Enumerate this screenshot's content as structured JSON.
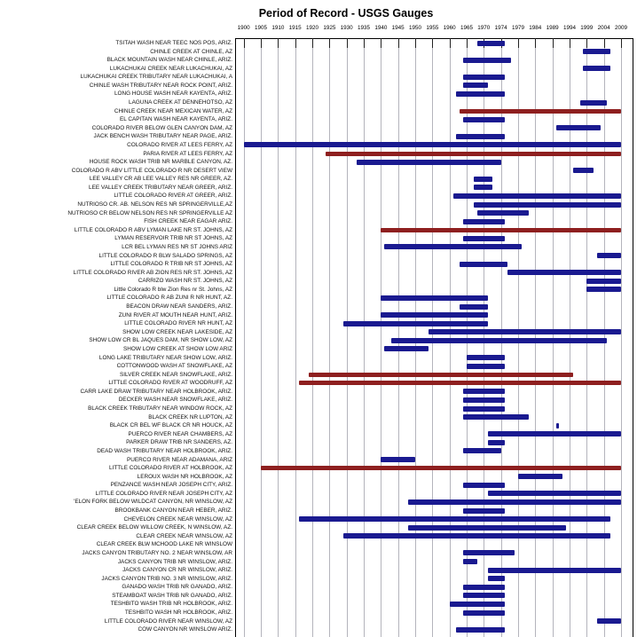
{
  "title": "Period of Record - USGS Gauges",
  "colors": {
    "bar_blue": "#1a1a90",
    "bar_red": "#8e1f1f",
    "gridline": "#b4b4bc",
    "axis_border": "#000000",
    "background": "#ffffff"
  },
  "chart_data": {
    "type": "bar",
    "subtype": "gantt-period-of-record",
    "title": "Period of Record - USGS Gauges",
    "x_axis_tick_labels": [
      "1900",
      "1905",
      "1910",
      "1915",
      "1920",
      "1925",
      "1930",
      "1935",
      "1940",
      "1945",
      "1950",
      "1955",
      "1960",
      "1965",
      "1970",
      "1974",
      "1979",
      "1984",
      "1989",
      "1994",
      "1999",
      "2004",
      "2009"
    ],
    "x_range": [
      1900,
      2009
    ],
    "grid": true,
    "legend": false,
    "rows": [
      {
        "label": "TSITAH WASH NEAR TEEC NOS POS, ARIZ.",
        "start": 1968,
        "end": 1975,
        "color": "blue"
      },
      {
        "label": "CHINLE CREEK AT CHINLE, AZ",
        "start": 1998,
        "end": 2006,
        "color": "blue"
      },
      {
        "label": "BLACK MOUNTAIN WASH NEAR CHINLE, ARIZ.",
        "start": 1964,
        "end": 1977,
        "color": "blue"
      },
      {
        "label": "LUKACHUKAI CREEK NEAR LUKACHUKAI, AZ",
        "start": 1998,
        "end": 2006,
        "color": "blue"
      },
      {
        "label": "LUKACHUKAI CREEK TRIBUTARY NEAR LUKACHUKAI, A",
        "start": 1964,
        "end": 1975,
        "color": "blue"
      },
      {
        "label": "CHINLE WASH TRIBUTARY NEAR ROCK POINT, ARIZ.",
        "start": 1964,
        "end": 1971,
        "color": "blue"
      },
      {
        "label": "LONG HOUSE WASH NEAR KAYENTA, ARIZ.",
        "start": 1962,
        "end": 1975,
        "color": "blue"
      },
      {
        "label": "LAGUNA CREEK AT DENNEHOTSO, AZ",
        "start": 1997,
        "end": 2005,
        "color": "blue"
      },
      {
        "label": "CHINLE CREEK NEAR MEXICAN WATER, AZ",
        "start": 1963,
        "end": 2009,
        "color": "red"
      },
      {
        "label": "EL CAPITAN WASH NEAR KAYENTA, ARIZ.",
        "start": 1964,
        "end": 1975,
        "color": "blue"
      },
      {
        "label": "COLORADO RIVER BELOW GLEN CANYON DAM, AZ",
        "start": 1990,
        "end": 2003,
        "color": "blue"
      },
      {
        "label": "JACK BENCH WASH TRIBUTARY NEAR PAGE, ARIZ.",
        "start": 1962,
        "end": 1975,
        "color": "blue"
      },
      {
        "label": "COLORADO RIVER AT LEES FERRY, AZ",
        "start": 1900,
        "end": 2009,
        "color": "blue"
      },
      {
        "label": "PARIA RIVER AT LEES FERRY, AZ",
        "start": 1924,
        "end": 2009,
        "color": "red"
      },
      {
        "label": "HOUSE ROCK WASH TRIB NR MARBLE CANYON, AZ.",
        "start": 1933,
        "end": 1974,
        "color": "blue"
      },
      {
        "label": "COLORADO R ABV LITTLE COLORADO R NR DESERT VIEW",
        "start": 1995,
        "end": 2001,
        "color": "blue"
      },
      {
        "label": "LEE VALLEY CR AB LEE VALLEY RES NR GREER, AZ.",
        "start": 1967,
        "end": 1972,
        "color": "blue"
      },
      {
        "label": "LEE VALLEY CREEK TRIBUTARY NEAR GREER, ARIZ.",
        "start": 1967,
        "end": 1972,
        "color": "blue"
      },
      {
        "label": "LITTLE COLORADO RIVER AT GREER, ARIZ.",
        "start": 1961,
        "end": 2009,
        "color": "blue"
      },
      {
        "label": "NUTRIOSO CR. AB. NELSON RES NR SPRINGERVILLE,AZ",
        "start": 1967,
        "end": 2009,
        "color": "blue"
      },
      {
        "label": "NUTRIOSO CR BELOW NELSON RES NR SPRINGERVILLE AZ",
        "start": 1968,
        "end": 1982,
        "color": "blue"
      },
      {
        "label": "FISH CREEK NEAR EAGAR ARIZ.",
        "start": 1964,
        "end": 1975,
        "color": "blue"
      },
      {
        "label": "LITTLE COLORADO R ABV LYMAN LAKE NR ST. JOHNS, AZ",
        "start": 1940,
        "end": 2009,
        "color": "red"
      },
      {
        "label": "LYMAN RESERVOIR TRIB NR ST JOHNS, AZ",
        "start": 1964,
        "end": 1975,
        "color": "blue"
      },
      {
        "label": "LCR BEL LYMAN RES NR ST JOHNS ARIZ",
        "start": 1941,
        "end": 1980,
        "color": "blue"
      },
      {
        "label": "LITTLE COLORADO R BLW SALADO SPRINGS, AZ",
        "start": 2002,
        "end": 2009,
        "color": "blue"
      },
      {
        "label": "LITTLE COLORADO R TRIB NR ST JOHNS, AZ",
        "start": 1963,
        "end": 1976,
        "color": "blue"
      },
      {
        "label": "LITTLE COLORADO RIVER AB ZION RES NR ST. JOHNS, AZ",
        "start": 1976,
        "end": 2009,
        "color": "blue"
      },
      {
        "label": "CARRIZO WASH NR ST. JOHNS, AZ",
        "start": 1999,
        "end": 2009,
        "color": "blue"
      },
      {
        "label": "Little Colorado R blw Zion Res nr St. Johns, AZ",
        "start": 1999,
        "end": 2009,
        "color": "blue"
      },
      {
        "label": "LITTLE COLORADO R AB ZUNI R NR HUNT, AZ.",
        "start": 1940,
        "end": 1971,
        "color": "blue"
      },
      {
        "label": "BEACON DRAW NEAR SANDERS, ARIZ.",
        "start": 1963,
        "end": 1971,
        "color": "blue"
      },
      {
        "label": "ZUNI RIVER AT MOUTH NEAR HUNT, ARIZ.",
        "start": 1940,
        "end": 1971,
        "color": "blue"
      },
      {
        "label": "LITTLE COLORADO RIVER NR HUNT, AZ",
        "start": 1929,
        "end": 1971,
        "color": "blue"
      },
      {
        "label": "SHOW LOW CREEK NEAR LAKESIDE, AZ",
        "start": 1954,
        "end": 2009,
        "color": "blue"
      },
      {
        "label": "SHOW LOW CR BL JAQUES DAM, NR SHOW LOW, AZ",
        "start": 1943,
        "end": 2005,
        "color": "blue"
      },
      {
        "label": "SHOW LOW CREEK AT SHOW LOW ARIZ",
        "start": 1941,
        "end": 1954,
        "color": "blue"
      },
      {
        "label": "LONG LAKE TRIBUTARY NEAR SHOW LOW, ARIZ.",
        "start": 1965,
        "end": 1975,
        "color": "blue"
      },
      {
        "label": "COTTONWOOD WASH AT SNOWFLAKE, AZ",
        "start": 1965,
        "end": 1975,
        "color": "blue"
      },
      {
        "label": "SILVER CREEK NEAR SNOWFLAKE, ARIZ.",
        "start": 1919,
        "end": 1995,
        "color": "red"
      },
      {
        "label": "LITTLE COLORADO RIVER AT WOODRUFF, AZ",
        "start": 1916,
        "end": 2009,
        "color": "red"
      },
      {
        "label": "CARR LAKE DRAW TRIBUTARY NEAR HOLBROOK, ARIZ.",
        "start": 1964,
        "end": 1975,
        "color": "blue"
      },
      {
        "label": "DECKER WASH NEAR SNOWFLAKE, ARIZ.",
        "start": 1964,
        "end": 1975,
        "color": "blue"
      },
      {
        "label": "BLACK CREEK TRIBUTARY NEAR WINDOW ROCK, AZ",
        "start": 1964,
        "end": 1975,
        "color": "blue"
      },
      {
        "label": "BLACK CREEK NR LUPTON, AZ",
        "start": 1964,
        "end": 1982,
        "color": "blue"
      },
      {
        "label": "BLACK CR BEL WF BLACK CR NR HOUCK, AZ",
        "start": 1990,
        "end": 1991,
        "color": "blue"
      },
      {
        "label": "PUERCO RIVER NEAR CHAMBERS, AZ",
        "start": 1971,
        "end": 2009,
        "color": "blue"
      },
      {
        "label": "PARKER DRAW TRIB NR SANDERS, AZ.",
        "start": 1971,
        "end": 1975,
        "color": "blue"
      },
      {
        "label": "DEAD WASH TRIBUTARY NEAR HOLBROOK, ARIZ.",
        "start": 1964,
        "end": 1974,
        "color": "blue"
      },
      {
        "label": "PUERCO RIVER NEAR ADAMANA, ARIZ",
        "start": 1940,
        "end": 1950,
        "color": "blue"
      },
      {
        "label": "LITTLE COLORADO RIVER AT HOLBROOK, AZ",
        "start": 1905,
        "end": 2009,
        "color": "red"
      },
      {
        "label": "LEROUX WASH NR HOLBROOK, AZ",
        "start": 1979,
        "end": 1992,
        "color": "blue"
      },
      {
        "label": "PENZANCE WASH NEAR JOSEPH CITY, ARIZ.",
        "start": 1964,
        "end": 1975,
        "color": "blue"
      },
      {
        "label": "LITTLE COLORADO RIVER NEAR JOSEPH CITY, AZ",
        "start": 1971,
        "end": 2009,
        "color": "blue"
      },
      {
        "label": "'ELON FORK BELOW WILDCAT CANYON, NR WINSLOW, AZ",
        "start": 1948,
        "end": 2009,
        "color": "blue"
      },
      {
        "label": "BROOKBANK CANYON NEAR HEBER, ARIZ.",
        "start": 1964,
        "end": 1975,
        "color": "blue"
      },
      {
        "label": "CHEVELON CREEK NEAR WINSLOW, AZ",
        "start": 1916,
        "end": 2006,
        "color": "blue"
      },
      {
        "label": "CLEAR CREEK BELOW WILLOW CREEK, N WINSLOW, AZ.",
        "start": 1948,
        "end": 1993,
        "color": "blue"
      },
      {
        "label": "CLEAR CREEK NEAR WINSLOW, AZ",
        "start": 1929,
        "end": 2006,
        "color": "blue"
      },
      {
        "label": "CLEAR CREEK BLW MCHOOD LAKE NR WINSLOW",
        "start": null,
        "end": null,
        "color": "blue"
      },
      {
        "label": "JACKS CANYON TRIBUTARY NO. 2 NEAR WINSLOW, AR",
        "start": 1964,
        "end": 1978,
        "color": "blue"
      },
      {
        "label": "JACKS CANYON TRIB NR WINSLOW, ARIZ.",
        "start": 1964,
        "end": 1968,
        "color": "blue"
      },
      {
        "label": "JACKS CANYON CR NR WINSLOW, ARIZ.",
        "start": 1971,
        "end": 2009,
        "color": "blue"
      },
      {
        "label": "JACKS CANYON TRIB NO. 3 NR WINSLOW, ARIZ.",
        "start": 1971,
        "end": 1975,
        "color": "blue"
      },
      {
        "label": "GANADO WASH TRIB NR GANADO, ARIZ.",
        "start": 1964,
        "end": 1975,
        "color": "blue"
      },
      {
        "label": "STEAMBOAT WASH TRIB NR GANADO, ARIZ.",
        "start": 1964,
        "end": 1975,
        "color": "blue"
      },
      {
        "label": "TESHBITO WASH TRIB NR HOLBROOK, ARIZ.",
        "start": 1960,
        "end": 1975,
        "color": "blue"
      },
      {
        "label": "TESHBITO WASH NR HOLBROOK, ARIZ.",
        "start": 1964,
        "end": 1975,
        "color": "blue"
      },
      {
        "label": "LITTLE COLORADO RIVER NEAR WINSLOW, AZ",
        "start": 2002,
        "end": 2009,
        "color": "blue"
      },
      {
        "label": "COW CANYON NR WINSLOW ARIZ.",
        "start": 1962,
        "end": 1975,
        "color": "blue"
      }
    ]
  }
}
